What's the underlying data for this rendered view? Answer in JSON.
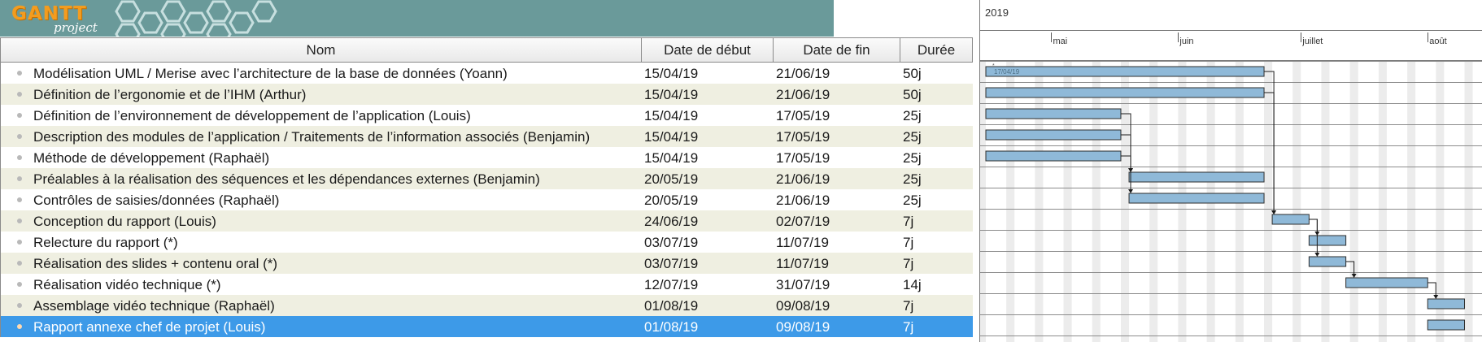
{
  "app": {
    "logo_text": "GANTT",
    "logo_subtext": "project",
    "accent": "#f39c1f",
    "banner_color": "#6a9a9a",
    "selection_color": "#3d9ae8",
    "bar_color": "#8fb9d8"
  },
  "table": {
    "columns": [
      "Nom",
      "Date de début",
      "Date de fin",
      "Durée"
    ],
    "rows": [
      {
        "name": "Modélisation UML / Merise avec l’architecture de la base de données (Yoann)",
        "start": "15/04/19",
        "end": "21/06/19",
        "duration": "50j"
      },
      {
        "name": "Définition de l’ergonomie et de l’IHM (Arthur)",
        "start": "15/04/19",
        "end": "21/06/19",
        "duration": "50j"
      },
      {
        "name": "Définition de l’environnement de développement de l’application (Louis)",
        "start": "15/04/19",
        "end": "17/05/19",
        "duration": "25j"
      },
      {
        "name": "Description des modules de l’application / Traitements de l’information associés (Benjamin)",
        "start": "15/04/19",
        "end": "17/05/19",
        "duration": "25j"
      },
      {
        "name": "Méthode de développement (Raphaël)",
        "start": "15/04/19",
        "end": "17/05/19",
        "duration": "25j"
      },
      {
        "name": "Préalables à la réalisation des séquences et les dépendances externes (Benjamin)",
        "start": "20/05/19",
        "end": "21/06/19",
        "duration": "25j"
      },
      {
        "name": "Contrôles de saisies/données (Raphaël)",
        "start": "20/05/19",
        "end": "21/06/19",
        "duration": "25j"
      },
      {
        "name": "Conception du rapport (Louis)",
        "start": "24/06/19",
        "end": "02/07/19",
        "duration": "7j"
      },
      {
        "name": "Relecture du rapport (*)",
        "start": "03/07/19",
        "end": "11/07/19",
        "duration": "7j"
      },
      {
        "name": "Réalisation des slides + contenu oral (*)",
        "start": "03/07/19",
        "end": "11/07/19",
        "duration": "7j"
      },
      {
        "name": "Réalisation vidéo technique (*)",
        "start": "12/07/19",
        "end": "31/07/19",
        "duration": "14j"
      },
      {
        "name": "Assemblage vidéo technique (Raphaël)",
        "start": "01/08/19",
        "end": "09/08/19",
        "duration": "7j"
      },
      {
        "name": "Rapport annexe chef de projet (Louis)",
        "start": "01/08/19",
        "end": "09/08/19",
        "duration": "7j",
        "selected": true
      }
    ]
  },
  "gantt": {
    "year": "2019",
    "months": [
      {
        "label": "mai",
        "date": "2019-05-01"
      },
      {
        "label": "juin",
        "date": "2019-06-01"
      },
      {
        "label": "juillet",
        "date": "2019-07-01"
      },
      {
        "label": "août",
        "date": "2019-08-01"
      }
    ],
    "first_bar_label": "17/04/19",
    "dependencies": [
      [
        0,
        7
      ],
      [
        1,
        7
      ],
      [
        2,
        5
      ],
      [
        3,
        5
      ],
      [
        4,
        6
      ],
      [
        7,
        8
      ],
      [
        7,
        9
      ],
      [
        9,
        10
      ],
      [
        10,
        11
      ]
    ]
  }
}
